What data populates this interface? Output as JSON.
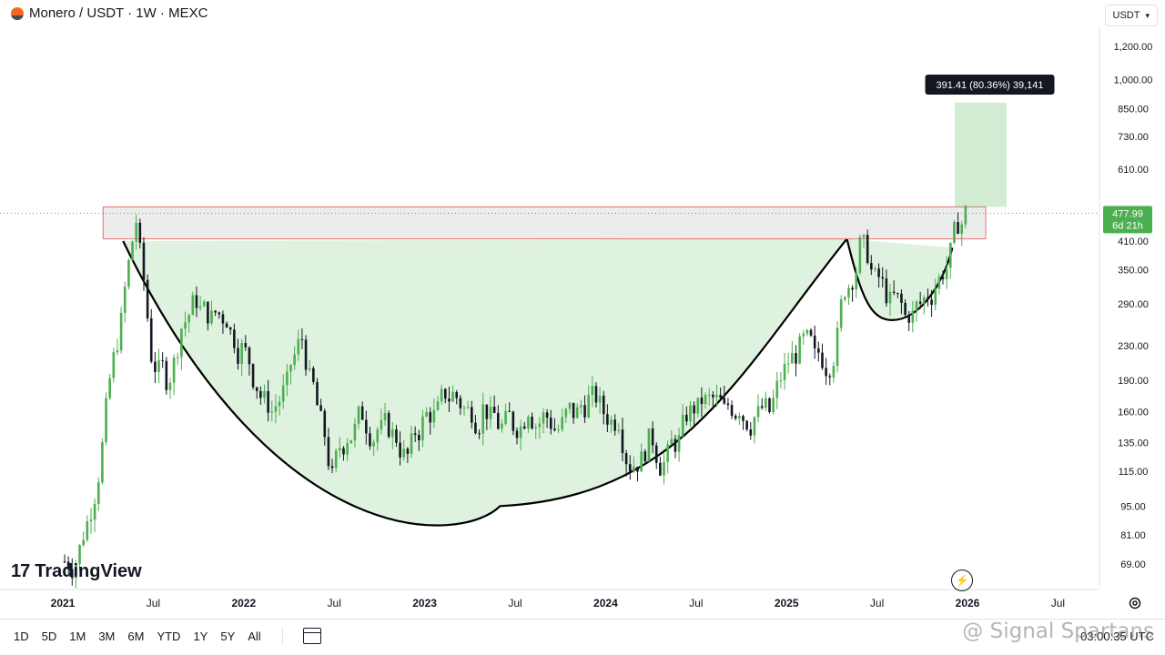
{
  "header": {
    "title": "Monero / USDT · 1W · MEXC"
  },
  "currency": {
    "value": "USDT"
  },
  "chart_data": {
    "type": "candlestick",
    "price_axis": {
      "scale": "log",
      "ticks": [
        {
          "value": 1200,
          "label": "1,200.00"
        },
        {
          "value": 1000,
          "label": "1,000.00"
        },
        {
          "value": 850,
          "label": "850.00"
        },
        {
          "value": 730,
          "label": "730.00"
        },
        {
          "value": 610,
          "label": "610.00"
        },
        {
          "value": 410,
          "label": "410.00"
        },
        {
          "value": 350,
          "label": "350.00"
        },
        {
          "value": 290,
          "label": "290.00"
        },
        {
          "value": 230,
          "label": "230.00"
        },
        {
          "value": 190,
          "label": "190.00"
        },
        {
          "value": 160,
          "label": "160.00"
        },
        {
          "value": 135,
          "label": "135.00"
        },
        {
          "value": 115,
          "label": "115.00"
        },
        {
          "value": 95,
          "label": "95.00"
        },
        {
          "value": 81,
          "label": "81.00"
        },
        {
          "value": 69,
          "label": "69.00"
        }
      ]
    },
    "time_axis": {
      "ticks": [
        {
          "date": "2021-01",
          "label": "2021"
        },
        {
          "date": "2021-07",
          "label": "Jul"
        },
        {
          "date": "2022-01",
          "label": "2022"
        },
        {
          "date": "2022-07",
          "label": "Jul"
        },
        {
          "date": "2023-01",
          "label": "2023"
        },
        {
          "date": "2023-07",
          "label": "Jul"
        },
        {
          "date": "2024-01",
          "label": "2024"
        },
        {
          "date": "2024-07",
          "label": "Jul"
        },
        {
          "date": "2025-01",
          "label": "2025"
        },
        {
          "date": "2025-07",
          "label": "Jul"
        },
        {
          "date": "2026-01",
          "label": "2026"
        },
        {
          "date": "2026-07",
          "label": "Jul"
        }
      ]
    },
    "current_price": {
      "value": 477.99,
      "label": "477.99",
      "countdown": "6d 21h"
    },
    "resistance_zone": {
      "low": 415,
      "high": 495,
      "from": "2021-05",
      "to": "2026-01"
    },
    "target_box": {
      "label": "391.41 (80.36%) 39,141",
      "low": 495,
      "high": 880,
      "from": "2025-12",
      "to": "2026-02"
    },
    "cup_pattern": {
      "left_rim": {
        "date": "2021-05",
        "price": 410
      },
      "bottom": {
        "date": "2023-06",
        "price": 95
      },
      "right_rim": {
        "date": "2025-05",
        "price": 415
      }
    },
    "handle_pattern": {
      "start": {
        "date": "2025-05",
        "price": 415
      },
      "bottom": {
        "date": "2025-08",
        "price": 265
      },
      "end": {
        "date": "2025-12",
        "price": 395
      }
    },
    "price_path": [
      [
        "2021-01",
        70
      ],
      [
        "2021-02",
        95
      ],
      [
        "2021-03",
        160
      ],
      [
        "2021-04",
        260
      ],
      [
        "2021-05",
        460
      ],
      [
        "2021-06",
        220
      ],
      [
        "2021-07",
        195
      ],
      [
        "2021-08",
        255
      ],
      [
        "2021-09",
        300
      ],
      [
        "2021-10",
        265
      ],
      [
        "2021-11",
        270
      ],
      [
        "2021-12",
        225
      ],
      [
        "2022-01",
        185
      ],
      [
        "2022-02",
        160
      ],
      [
        "2022-03",
        185
      ],
      [
        "2022-04",
        240
      ],
      [
        "2022-05",
        165
      ],
      [
        "2022-06",
        110
      ],
      [
        "2022-07",
        140
      ],
      [
        "2022-08",
        160
      ],
      [
        "2022-09",
        145
      ],
      [
        "2022-10",
        140
      ],
      [
        "2022-11",
        125
      ],
      [
        "2022-12",
        150
      ],
      [
        "2023-01",
        160
      ],
      [
        "2023-02",
        175
      ],
      [
        "2023-03",
        160
      ],
      [
        "2023-04",
        162
      ],
      [
        "2023-05",
        150
      ],
      [
        "2023-06",
        150
      ],
      [
        "2023-07",
        165
      ],
      [
        "2023-08",
        155
      ],
      [
        "2023-09",
        145
      ],
      [
        "2023-10",
        160
      ],
      [
        "2023-11",
        170
      ],
      [
        "2023-12",
        160
      ],
      [
        "2024-01",
        155
      ],
      [
        "2024-02",
        120
      ],
      [
        "2024-03",
        135
      ],
      [
        "2024-04",
        120
      ],
      [
        "2024-05",
        135
      ],
      [
        "2024-06",
        165
      ],
      [
        "2024-07",
        170
      ],
      [
        "2024-08",
        160
      ],
      [
        "2024-09",
        165
      ],
      [
        "2024-10",
        155
      ],
      [
        "2024-11",
        160
      ],
      [
        "2024-12",
        200
      ],
      [
        "2025-01",
        225
      ],
      [
        "2025-02",
        215
      ],
      [
        "2025-03",
        210
      ],
      [
        "2025-04",
        320
      ],
      [
        "2025-05",
        395
      ],
      [
        "2025-06",
        330
      ],
      [
        "2025-07",
        290
      ],
      [
        "2025-08",
        270
      ],
      [
        "2025-09",
        290
      ],
      [
        "2025-10",
        320
      ],
      [
        "2025-11",
        380
      ],
      [
        "2025-12",
        478
      ]
    ]
  },
  "brand": {
    "name": "TradingView"
  },
  "range_buttons": [
    "1D",
    "5D",
    "1M",
    "3M",
    "6M",
    "YTD",
    "1Y",
    "5Y",
    "All"
  ],
  "clock": "03:00:35 UTC",
  "watermark": "@ Signal Spartans"
}
